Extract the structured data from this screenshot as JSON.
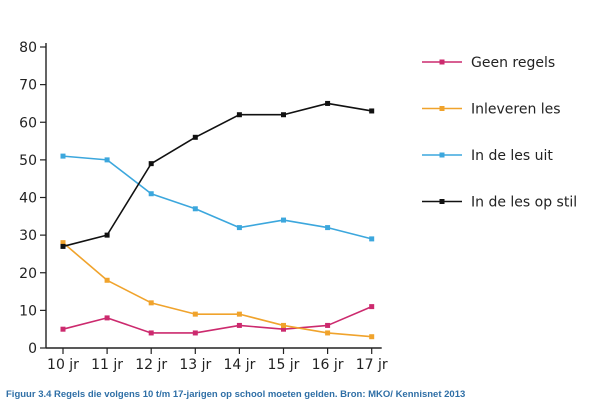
{
  "chart_data": {
    "type": "line",
    "categories": [
      "10 jr",
      "11 jr",
      "12 jr",
      "13 jr",
      "14 jr",
      "15 jr",
      "16 jr",
      "17 jr"
    ],
    "ylim": [
      0,
      80
    ],
    "yticks": [
      0,
      10,
      20,
      30,
      40,
      50,
      60,
      70,
      80
    ],
    "grid": false,
    "legend_position": "right",
    "series": [
      {
        "name": "Geen regels",
        "color": "#cc2a6e",
        "values": [
          5,
          8,
          4,
          4,
          6,
          5,
          6,
          11
        ]
      },
      {
        "name": "Inleveren les",
        "color": "#f0a32c",
        "values": [
          28,
          18,
          12,
          9,
          9,
          6,
          4,
          3
        ]
      },
      {
        "name": "In de les uit",
        "color": "#3ca7dd",
        "values": [
          51,
          50,
          41,
          37,
          32,
          34,
          32,
          29
        ]
      },
      {
        "name": "In de les op stil",
        "color": "#111111",
        "values": [
          27,
          30,
          49,
          56,
          62,
          62,
          65,
          63
        ]
      }
    ]
  },
  "caption": "Figuur 3.4 Regels die volgens 10 t/m 17-jarigen op school moeten gelden. Bron: MKO/ Kennisnet 2013"
}
